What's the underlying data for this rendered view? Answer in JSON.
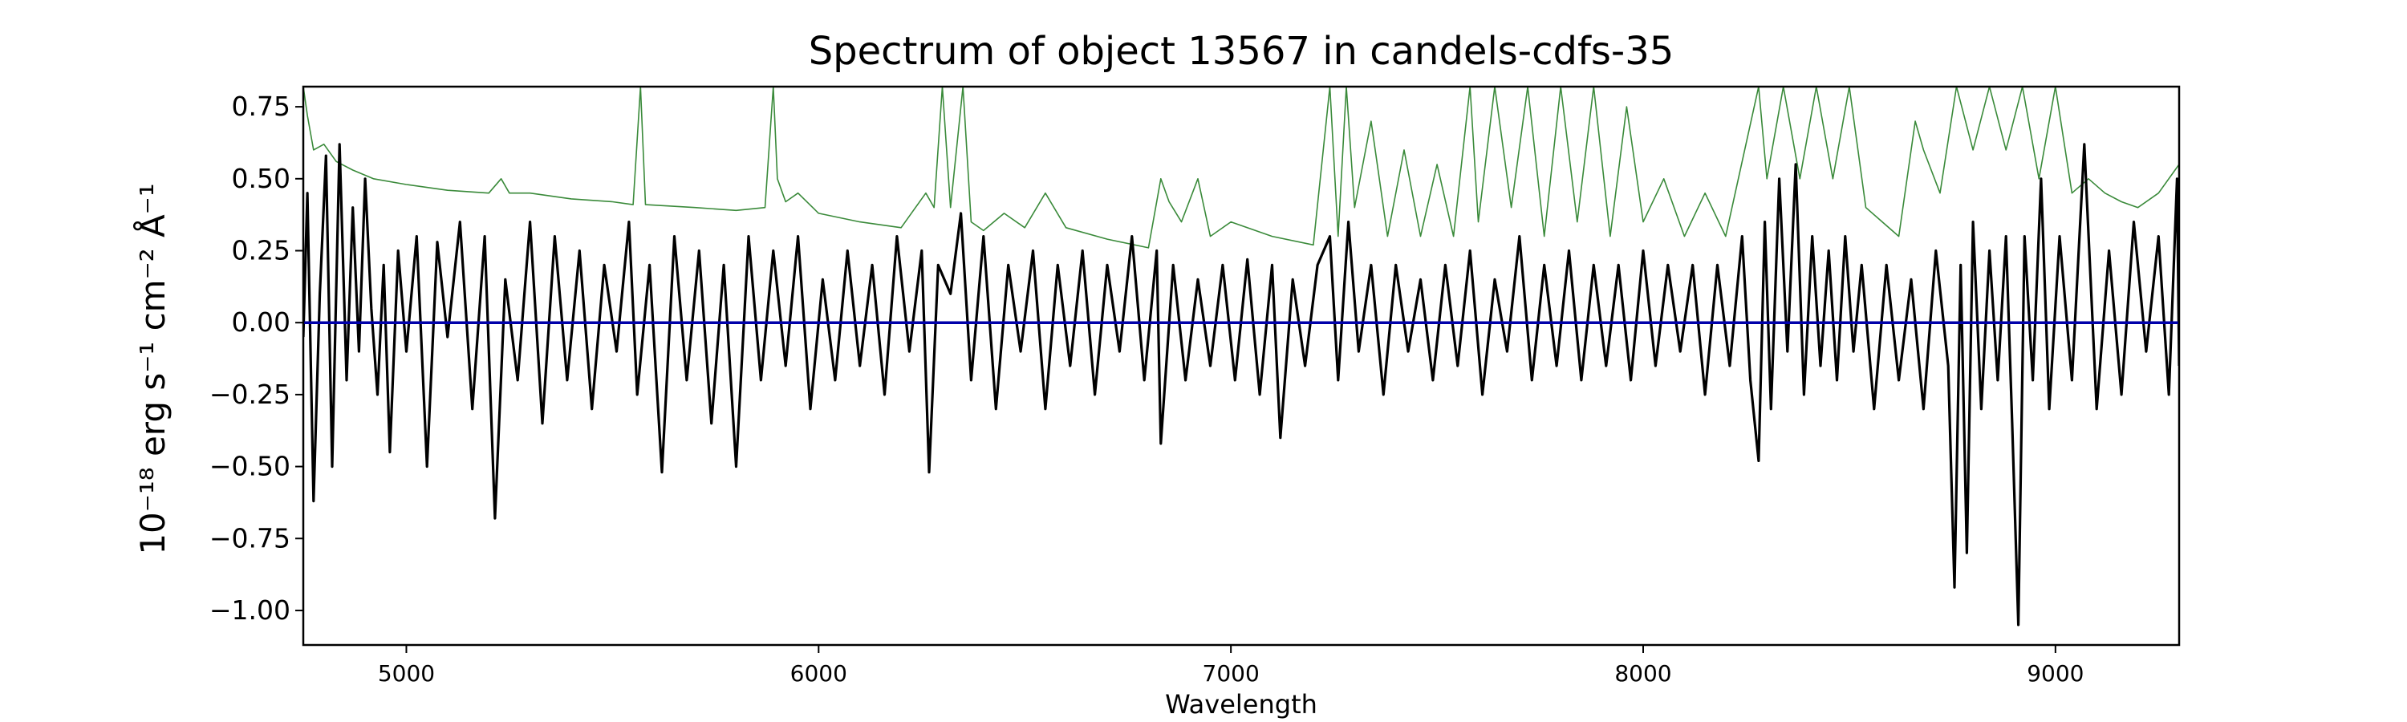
{
  "chart_data": {
    "type": "line",
    "title": "Spectrum of object 13567 in candels-cdfs-35",
    "xlabel": "Wavelength",
    "ylabel": "10⁻¹⁸ erg s⁻¹ cm⁻² Å⁻¹",
    "xlim": [
      4750,
      9300
    ],
    "ylim": [
      -1.12,
      0.82
    ],
    "x_ticks": [
      5000,
      6000,
      7000,
      8000,
      9000
    ],
    "x_tick_labels": [
      "5000",
      "6000",
      "7000",
      "8000",
      "9000"
    ],
    "y_ticks": [
      0.75,
      0.5,
      0.25,
      0.0,
      -0.25,
      -0.5,
      -0.75,
      -1.0
    ],
    "y_tick_labels": [
      "0.75",
      "0.50",
      "0.25",
      "0.00",
      "−0.25",
      "−0.50",
      "−0.75",
      "−1.00"
    ],
    "grid": false,
    "legend": "none",
    "series": [
      {
        "role": "flux",
        "color": "#000000",
        "points": [
          [
            4750,
            -0.05
          ],
          [
            4760,
            0.45
          ],
          [
            4775,
            -0.62
          ],
          [
            4790,
            0.1
          ],
          [
            4805,
            0.58
          ],
          [
            4820,
            -0.5
          ],
          [
            4838,
            0.62
          ],
          [
            4855,
            -0.2
          ],
          [
            4870,
            0.4
          ],
          [
            4885,
            -0.1
          ],
          [
            4900,
            0.5
          ],
          [
            4915,
            0.05
          ],
          [
            4930,
            -0.25
          ],
          [
            4945,
            0.2
          ],
          [
            4960,
            -0.45
          ],
          [
            4980,
            0.25
          ],
          [
            5000,
            -0.1
          ],
          [
            5025,
            0.3
          ],
          [
            5050,
            -0.5
          ],
          [
            5075,
            0.28
          ],
          [
            5100,
            -0.05
          ],
          [
            5130,
            0.35
          ],
          [
            5160,
            -0.3
          ],
          [
            5190,
            0.3
          ],
          [
            5215,
            -0.68
          ],
          [
            5240,
            0.15
          ],
          [
            5270,
            -0.2
          ],
          [
            5300,
            0.35
          ],
          [
            5330,
            -0.35
          ],
          [
            5360,
            0.3
          ],
          [
            5390,
            -0.2
          ],
          [
            5420,
            0.25
          ],
          [
            5450,
            -0.3
          ],
          [
            5480,
            0.2
          ],
          [
            5510,
            -0.1
          ],
          [
            5540,
            0.35
          ],
          [
            5560,
            -0.25
          ],
          [
            5590,
            0.2
          ],
          [
            5620,
            -0.52
          ],
          [
            5650,
            0.3
          ],
          [
            5680,
            -0.2
          ],
          [
            5710,
            0.25
          ],
          [
            5740,
            -0.35
          ],
          [
            5770,
            0.2
          ],
          [
            5800,
            -0.5
          ],
          [
            5830,
            0.3
          ],
          [
            5860,
            -0.2
          ],
          [
            5890,
            0.25
          ],
          [
            5920,
            -0.15
          ],
          [
            5950,
            0.3
          ],
          [
            5980,
            -0.3
          ],
          [
            6010,
            0.15
          ],
          [
            6040,
            -0.2
          ],
          [
            6070,
            0.25
          ],
          [
            6100,
            -0.15
          ],
          [
            6130,
            0.2
          ],
          [
            6160,
            -0.25
          ],
          [
            6190,
            0.3
          ],
          [
            6220,
            -0.1
          ],
          [
            6250,
            0.25
          ],
          [
            6268,
            -0.52
          ],
          [
            6290,
            0.2
          ],
          [
            6320,
            0.1
          ],
          [
            6345,
            0.38
          ],
          [
            6370,
            -0.2
          ],
          [
            6400,
            0.3
          ],
          [
            6430,
            -0.3
          ],
          [
            6460,
            0.2
          ],
          [
            6490,
            -0.1
          ],
          [
            6520,
            0.25
          ],
          [
            6550,
            -0.3
          ],
          [
            6580,
            0.2
          ],
          [
            6610,
            -0.15
          ],
          [
            6640,
            0.25
          ],
          [
            6670,
            -0.25
          ],
          [
            6700,
            0.2
          ],
          [
            6730,
            -0.1
          ],
          [
            6760,
            0.3
          ],
          [
            6790,
            -0.2
          ],
          [
            6820,
            0.25
          ],
          [
            6830,
            -0.42
          ],
          [
            6860,
            0.2
          ],
          [
            6890,
            -0.2
          ],
          [
            6920,
            0.15
          ],
          [
            6950,
            -0.15
          ],
          [
            6980,
            0.2
          ],
          [
            7010,
            -0.2
          ],
          [
            7040,
            0.22
          ],
          [
            7070,
            -0.25
          ],
          [
            7100,
            0.2
          ],
          [
            7120,
            -0.4
          ],
          [
            7150,
            0.15
          ],
          [
            7180,
            -0.15
          ],
          [
            7210,
            0.2
          ],
          [
            7240,
            0.3
          ],
          [
            7260,
            -0.2
          ],
          [
            7285,
            0.35
          ],
          [
            7310,
            -0.1
          ],
          [
            7340,
            0.2
          ],
          [
            7370,
            -0.25
          ],
          [
            7400,
            0.2
          ],
          [
            7430,
            -0.1
          ],
          [
            7460,
            0.15
          ],
          [
            7490,
            -0.2
          ],
          [
            7520,
            0.2
          ],
          [
            7550,
            -0.15
          ],
          [
            7580,
            0.25
          ],
          [
            7610,
            -0.25
          ],
          [
            7640,
            0.15
          ],
          [
            7670,
            -0.1
          ],
          [
            7700,
            0.3
          ],
          [
            7730,
            -0.2
          ],
          [
            7760,
            0.2
          ],
          [
            7790,
            -0.15
          ],
          [
            7820,
            0.25
          ],
          [
            7850,
            -0.2
          ],
          [
            7880,
            0.2
          ],
          [
            7910,
            -0.15
          ],
          [
            7940,
            0.2
          ],
          [
            7970,
            -0.2
          ],
          [
            8000,
            0.25
          ],
          [
            8030,
            -0.15
          ],
          [
            8060,
            0.2
          ],
          [
            8090,
            -0.1
          ],
          [
            8120,
            0.2
          ],
          [
            8150,
            -0.25
          ],
          [
            8180,
            0.2
          ],
          [
            8210,
            -0.15
          ],
          [
            8240,
            0.3
          ],
          [
            8260,
            -0.2
          ],
          [
            8280,
            -0.48
          ],
          [
            8295,
            0.35
          ],
          [
            8310,
            -0.3
          ],
          [
            8330,
            0.5
          ],
          [
            8350,
            -0.1
          ],
          [
            8370,
            0.55
          ],
          [
            8390,
            -0.25
          ],
          [
            8410,
            0.3
          ],
          [
            8430,
            -0.15
          ],
          [
            8450,
            0.25
          ],
          [
            8470,
            -0.2
          ],
          [
            8490,
            0.3
          ],
          [
            8510,
            -0.1
          ],
          [
            8530,
            0.2
          ],
          [
            8560,
            -0.3
          ],
          [
            8590,
            0.2
          ],
          [
            8620,
            -0.2
          ],
          [
            8650,
            0.15
          ],
          [
            8680,
            -0.3
          ],
          [
            8710,
            0.25
          ],
          [
            8740,
            -0.15
          ],
          [
            8755,
            -0.92
          ],
          [
            8770,
            0.2
          ],
          [
            8785,
            -0.8
          ],
          [
            8800,
            0.35
          ],
          [
            8820,
            -0.3
          ],
          [
            8840,
            0.25
          ],
          [
            8860,
            -0.2
          ],
          [
            8880,
            0.3
          ],
          [
            8895,
            -0.35
          ],
          [
            8910,
            -1.05
          ],
          [
            8925,
            0.3
          ],
          [
            8945,
            -0.2
          ],
          [
            8965,
            0.5
          ],
          [
            8985,
            -0.3
          ],
          [
            9010,
            0.3
          ],
          [
            9040,
            -0.2
          ],
          [
            9070,
            0.62
          ],
          [
            9100,
            -0.3
          ],
          [
            9130,
            0.25
          ],
          [
            9160,
            -0.25
          ],
          [
            9190,
            0.35
          ],
          [
            9220,
            -0.1
          ],
          [
            9250,
            0.3
          ],
          [
            9275,
            -0.25
          ],
          [
            9295,
            0.5
          ],
          [
            9300,
            -0.15
          ]
        ]
      },
      {
        "role": "error",
        "color": "#3a8a3a",
        "points": [
          [
            4750,
            0.82
          ],
          [
            4760,
            0.72
          ],
          [
            4775,
            0.6
          ],
          [
            4800,
            0.62
          ],
          [
            4830,
            0.56
          ],
          [
            4870,
            0.53
          ],
          [
            4920,
            0.5
          ],
          [
            5000,
            0.48
          ],
          [
            5100,
            0.46
          ],
          [
            5200,
            0.45
          ],
          [
            5230,
            0.5
          ],
          [
            5250,
            0.45
          ],
          [
            5300,
            0.45
          ],
          [
            5400,
            0.43
          ],
          [
            5500,
            0.42
          ],
          [
            5550,
            0.41
          ],
          [
            5568,
            0.82
          ],
          [
            5580,
            0.41
          ],
          [
            5700,
            0.4
          ],
          [
            5800,
            0.39
          ],
          [
            5870,
            0.4
          ],
          [
            5890,
            0.82
          ],
          [
            5900,
            0.5
          ],
          [
            5920,
            0.42
          ],
          [
            5950,
            0.45
          ],
          [
            6000,
            0.38
          ],
          [
            6100,
            0.35
          ],
          [
            6200,
            0.33
          ],
          [
            6260,
            0.45
          ],
          [
            6280,
            0.4
          ],
          [
            6300,
            0.82
          ],
          [
            6320,
            0.4
          ],
          [
            6350,
            0.82
          ],
          [
            6370,
            0.35
          ],
          [
            6400,
            0.32
          ],
          [
            6450,
            0.38
          ],
          [
            6500,
            0.33
          ],
          [
            6550,
            0.45
          ],
          [
            6600,
            0.33
          ],
          [
            6700,
            0.29
          ],
          [
            6800,
            0.26
          ],
          [
            6830,
            0.5
          ],
          [
            6850,
            0.42
          ],
          [
            6880,
            0.35
          ],
          [
            6920,
            0.5
          ],
          [
            6950,
            0.3
          ],
          [
            7000,
            0.35
          ],
          [
            7100,
            0.3
          ],
          [
            7200,
            0.27
          ],
          [
            7240,
            0.82
          ],
          [
            7260,
            0.3
          ],
          [
            7280,
            0.82
          ],
          [
            7300,
            0.4
          ],
          [
            7340,
            0.7
          ],
          [
            7380,
            0.3
          ],
          [
            7420,
            0.6
          ],
          [
            7460,
            0.3
          ],
          [
            7500,
            0.55
          ],
          [
            7540,
            0.3
          ],
          [
            7580,
            0.82
          ],
          [
            7600,
            0.35
          ],
          [
            7640,
            0.82
          ],
          [
            7680,
            0.4
          ],
          [
            7720,
            0.82
          ],
          [
            7760,
            0.3
          ],
          [
            7800,
            0.82
          ],
          [
            7840,
            0.35
          ],
          [
            7880,
            0.82
          ],
          [
            7920,
            0.3
          ],
          [
            7960,
            0.75
          ],
          [
            8000,
            0.35
          ],
          [
            8050,
            0.5
          ],
          [
            8100,
            0.3
          ],
          [
            8150,
            0.45
          ],
          [
            8200,
            0.3
          ],
          [
            8280,
            0.82
          ],
          [
            8300,
            0.5
          ],
          [
            8340,
            0.82
          ],
          [
            8380,
            0.5
          ],
          [
            8420,
            0.82
          ],
          [
            8460,
            0.5
          ],
          [
            8500,
            0.82
          ],
          [
            8540,
            0.4
          ],
          [
            8580,
            0.35
          ],
          [
            8620,
            0.3
          ],
          [
            8660,
            0.7
          ],
          [
            8680,
            0.6
          ],
          [
            8720,
            0.45
          ],
          [
            8760,
            0.82
          ],
          [
            8800,
            0.6
          ],
          [
            8840,
            0.82
          ],
          [
            8880,
            0.6
          ],
          [
            8920,
            0.82
          ],
          [
            8960,
            0.5
          ],
          [
            9000,
            0.82
          ],
          [
            9040,
            0.45
          ],
          [
            9080,
            0.5
          ],
          [
            9120,
            0.45
          ],
          [
            9160,
            0.42
          ],
          [
            9200,
            0.4
          ],
          [
            9250,
            0.45
          ],
          [
            9300,
            0.55
          ]
        ]
      },
      {
        "role": "continuum",
        "color": "#0000aa",
        "points": [
          [
            4750,
            0.0
          ],
          [
            9300,
            0.0
          ]
        ]
      }
    ]
  }
}
